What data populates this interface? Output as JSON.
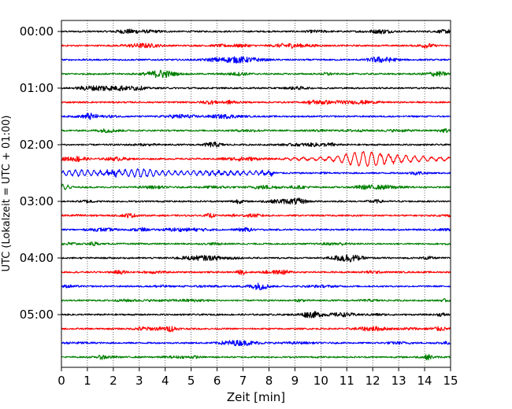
{
  "chart_data": {
    "type": "line",
    "xlabel": "Zeit  [min]",
    "ylabel": "UTC (Lokalzeit = UTC + 01:00)",
    "xlim": [
      0,
      15
    ],
    "x_ticks": [
      0,
      1,
      2,
      3,
      4,
      5,
      6,
      7,
      8,
      9,
      10,
      11,
      12,
      13,
      14,
      15
    ],
    "y_tick_labels": [
      "00:00",
      "01:00",
      "02:00",
      "03:00",
      "04:00",
      "05:00"
    ],
    "trace_interval_min": 15,
    "trace_count": 24,
    "trace_colors": [
      "#000000",
      "#ff0000",
      "#0000ff",
      "#008000"
    ],
    "grid": "vertical-dotted",
    "events": [
      {
        "trace": 9,
        "from_min": 8.2,
        "to_min": 15,
        "description": "long-period wave train",
        "peak_min": 11.5
      },
      {
        "trace": 10,
        "from_min": 0,
        "to_min": 8.2,
        "description": "long-period wave train continued",
        "peak_min": 3.0
      },
      {
        "trace": 11,
        "from_min": 0,
        "to_min": 0.6,
        "description": "wave train tail"
      }
    ]
  }
}
